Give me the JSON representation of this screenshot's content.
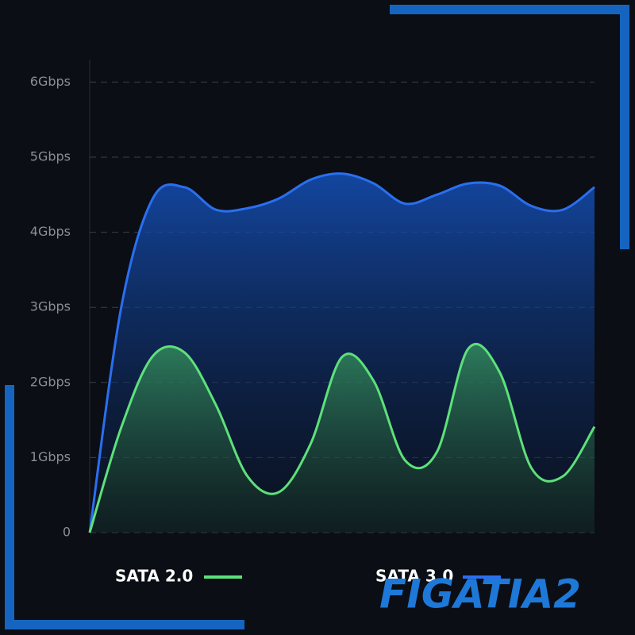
{
  "chart_data": {
    "type": "area",
    "categories": [
      null,
      null,
      null,
      null,
      null,
      null,
      null,
      null,
      null,
      null,
      null,
      null,
      null,
      null,
      null,
      null,
      null
    ],
    "series": [
      {
        "name": "SATA 2.0",
        "color": "#5ee07a",
        "values": [
          0,
          1.4,
          2.35,
          2.4,
          1.7,
          0.75,
          0.54,
          1.18,
          2.34,
          2.02,
          0.96,
          1.07,
          2.45,
          2.13,
          0.86,
          0.75,
          1.41
        ]
      },
      {
        "name": "SATA 3.0",
        "color": "#2a6ff0",
        "values": [
          0,
          3.0,
          4.45,
          4.6,
          4.3,
          4.32,
          4.45,
          4.7,
          4.78,
          4.65,
          4.38,
          4.5,
          4.65,
          4.62,
          4.35,
          4.3,
          4.6
        ]
      }
    ],
    "ylim": [
      0,
      6.3
    ],
    "yticks": [
      0,
      {
        "value": 1,
        "label": "1Gbps"
      },
      {
        "value": 2,
        "label": "2Gbps"
      },
      {
        "value": 3,
        "label": "3Gbps"
      },
      {
        "value": 4,
        "label": "4Gbps"
      },
      {
        "value": 5,
        "label": "5Gbps"
      },
      {
        "value": 6,
        "label": "6Gbps"
      }
    ],
    "grid": true,
    "watermark": "FIGATIA2"
  }
}
